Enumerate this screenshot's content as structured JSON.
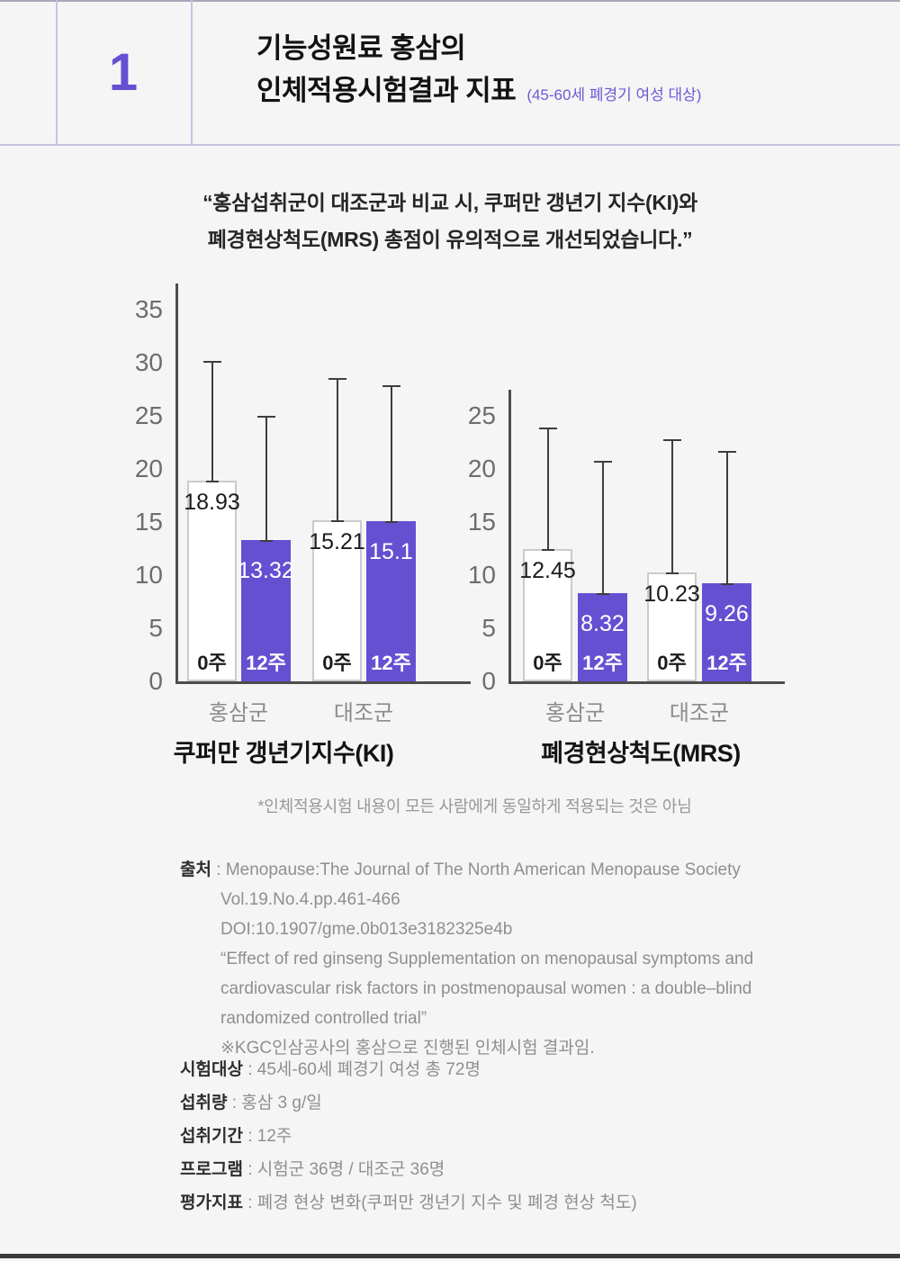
{
  "header": {
    "number": "1",
    "title_line1": "기능성원료 홍삼의",
    "title_line2": "인체적용시험결과 지표",
    "subtitle": "(45-60세 폐경기 여성 대상)"
  },
  "quote": {
    "line1": "“홍삼섭취군이 대조군과 비교 시, 쿠퍼만 갱년기 지수(KI)와",
    "line2": "폐경현상척도(MRS) 총점이 유의적으로 개선되었습니다.”"
  },
  "chart_data": [
    {
      "type": "bar",
      "title": "쿠퍼만 갱년기지수(KI)",
      "groups": [
        "홍삼군",
        "대조군"
      ],
      "categories": [
        "0주",
        "12주",
        "0주",
        "12주"
      ],
      "values": [
        18.93,
        13.32,
        15.21,
        15.1
      ],
      "value_labels": [
        "18.93",
        "13.32",
        "15.21",
        "15.1"
      ],
      "error_top": [
        30.1,
        24.9,
        28.5,
        27.8
      ],
      "yticks": [
        0,
        5,
        10,
        15,
        20,
        25,
        30,
        35
      ],
      "ylim": [
        0,
        37.5
      ],
      "bar_styles": [
        "light",
        "accent",
        "light",
        "accent"
      ],
      "grid": false,
      "legend": "none"
    },
    {
      "type": "bar",
      "title": "폐경현상척도(MRS)",
      "groups": [
        "홍삼군",
        "대조군"
      ],
      "categories": [
        "0주",
        "12주",
        "0주",
        "12주"
      ],
      "values": [
        12.45,
        8.32,
        10.23,
        9.26
      ],
      "value_labels": [
        "12.45",
        "8.32",
        "10.23",
        "9.26"
      ],
      "error_top": [
        23.8,
        20.7,
        22.7,
        21.6
      ],
      "yticks": [
        0,
        5,
        10,
        15,
        20,
        25
      ],
      "ylim": [
        0,
        27.5
      ],
      "bar_styles": [
        "light",
        "accent",
        "light",
        "accent"
      ],
      "grid": false,
      "legend": "none"
    }
  ],
  "footnote": "*인체적용시험 내용이 모든 사람에게 동일하게 적용되는 것은 아님",
  "sep": " : ",
  "source": {
    "label": "출처",
    "rows": [
      {
        "indent": false,
        "text": "Menopause:The Journal of The North American Menopause Society"
      },
      {
        "indent": true,
        "text": "Vol.19.No.4.pp.461-466"
      },
      {
        "indent": true,
        "text": "DOI:10.1907/gme.0b013e3182325e4b"
      },
      {
        "indent": true,
        "text": "“Effect of red ginseng Supplementation on menopausal symptoms and"
      },
      {
        "indent": true,
        "text": "cardiovascular risk factors in postmenopausal women : a double–blind"
      },
      {
        "indent": true,
        "text": "randomized controlled trial”"
      },
      {
        "indent": true,
        "text": "※KGC인삼공사의 홍삼으로 진행된 인체시험 결과임."
      }
    ]
  },
  "details": [
    {
      "label": "시험대상",
      "value": "45세-60세 폐경기 여성 총 72명"
    },
    {
      "label": "섭취량",
      "value": "홍삼 3 g/일"
    },
    {
      "label": "섭취기간",
      "value": "12주"
    },
    {
      "label": "프로그램",
      "value": "시험군 36명 / 대조군 36명"
    },
    {
      "label": "평가지표",
      "value": "폐경 현상 변화(쿠퍼만 갱년기 지수 및 폐경 현상 척도)"
    }
  ],
  "colors": {
    "accent_purple": "#6550d2",
    "number_purple": "#5b49c8",
    "subtitle_purple": "#6c5bd2",
    "header_line": "#c7c3de",
    "axis_gray": "#4d4d4d",
    "background": "#f5f5f6",
    "bottom_border": "#3a3a3a"
  }
}
